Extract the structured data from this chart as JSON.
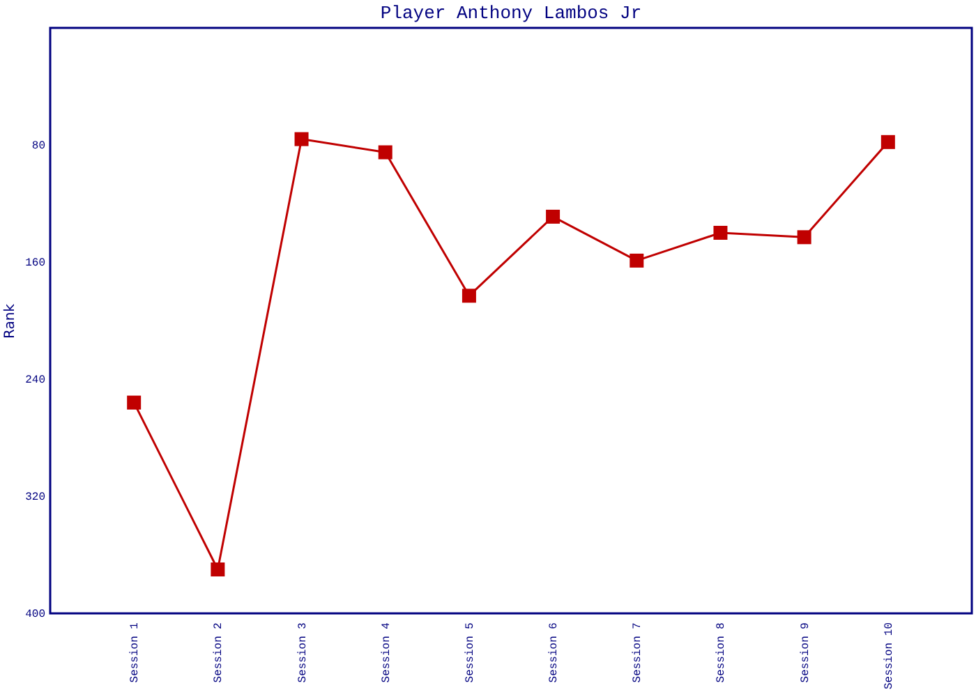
{
  "chart_data": {
    "type": "line",
    "title": "Player Anthony Lambos Jr",
    "ylabel": "Rank",
    "categories": [
      "Session 1",
      "Session 2",
      "Session 3",
      "Session 4",
      "Session 5",
      "Session 6",
      "Session 7",
      "Session 8",
      "Session 9",
      "Session 10"
    ],
    "series": [
      {
        "color": "#c00000",
        "values": [
          256,
          370,
          76,
          85,
          183,
          129,
          159,
          140,
          143,
          78
        ]
      }
    ],
    "ylim": [
      400,
      0
    ],
    "yticks": [
      80,
      160,
      240,
      320,
      400
    ],
    "marker": "square",
    "line_style": "solid",
    "grid": false,
    "legend": false
  }
}
